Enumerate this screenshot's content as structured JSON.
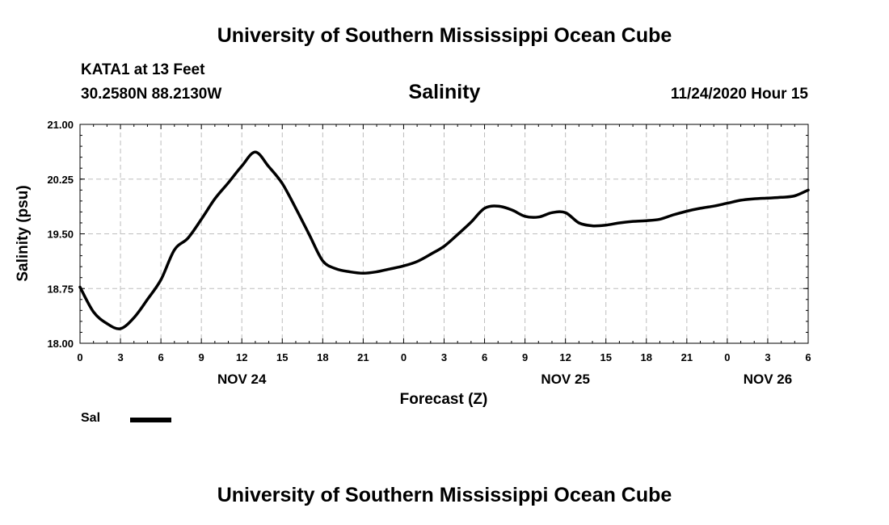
{
  "header": {
    "banner": "University of Southern Mississippi Ocean Cube",
    "station": "KATA1 at 13 Feet",
    "coordinates": "30.2580N 88.2130W",
    "title": "Salinity",
    "timestamp": "11/24/2020 Hour 15"
  },
  "footer": {
    "banner": "University of Southern Mississippi Ocean Cube"
  },
  "legend": {
    "label": "Sal",
    "color": "#000000"
  },
  "chart_data": {
    "type": "line",
    "title": "Salinity",
    "xlabel": "Forecast (Z)",
    "ylabel": "Salinity (psu)",
    "xlim": [
      0,
      54
    ],
    "ylim": [
      18.0,
      21.0
    ],
    "grid": true,
    "x_ticks": [
      0,
      3,
      6,
      9,
      12,
      15,
      18,
      21,
      24,
      27,
      30,
      33,
      36,
      39,
      42,
      45,
      48,
      51,
      54
    ],
    "x_tick_labels": [
      "0",
      "3",
      "6",
      "9",
      "12",
      "15",
      "18",
      "21",
      "0",
      "3",
      "6",
      "9",
      "12",
      "15",
      "18",
      "21",
      "0",
      "3",
      "6"
    ],
    "y_ticks": [
      18.0,
      18.75,
      19.5,
      20.25,
      21.0
    ],
    "y_tick_labels": [
      "18.00",
      "18.75",
      "19.50",
      "20.25",
      "21.00"
    ],
    "day_labels": [
      {
        "x": 12,
        "label": "NOV 24"
      },
      {
        "x": 36,
        "label": "NOV 25"
      },
      {
        "x": 51,
        "label": "NOV 26"
      }
    ],
    "series": [
      {
        "name": "Sal",
        "x": [
          0,
          1,
          2,
          3,
          4,
          5,
          6,
          7,
          8,
          9,
          10,
          11,
          12,
          13,
          14,
          15,
          16,
          17,
          18,
          19,
          20,
          21,
          22,
          23,
          24,
          25,
          26,
          27,
          28,
          29,
          30,
          31,
          32,
          33,
          34,
          35,
          36,
          37,
          38,
          39,
          40,
          41,
          42,
          43,
          44,
          45,
          46,
          47,
          48,
          49,
          50,
          51,
          52,
          53,
          54
        ],
        "values": [
          18.77,
          18.43,
          18.27,
          18.2,
          18.35,
          18.6,
          18.87,
          19.28,
          19.44,
          19.7,
          19.98,
          20.2,
          20.43,
          20.62,
          20.42,
          20.19,
          19.85,
          19.49,
          19.13,
          19.02,
          18.98,
          18.96,
          18.98,
          19.02,
          19.06,
          19.12,
          19.22,
          19.33,
          19.49,
          19.66,
          19.85,
          19.88,
          19.83,
          19.74,
          19.73,
          19.79,
          19.79,
          19.65,
          19.61,
          19.62,
          19.65,
          19.67,
          19.68,
          19.7,
          19.76,
          19.81,
          19.85,
          19.88,
          19.92,
          19.96,
          19.98,
          19.99,
          20.0,
          20.02,
          20.1
        ]
      }
    ]
  }
}
